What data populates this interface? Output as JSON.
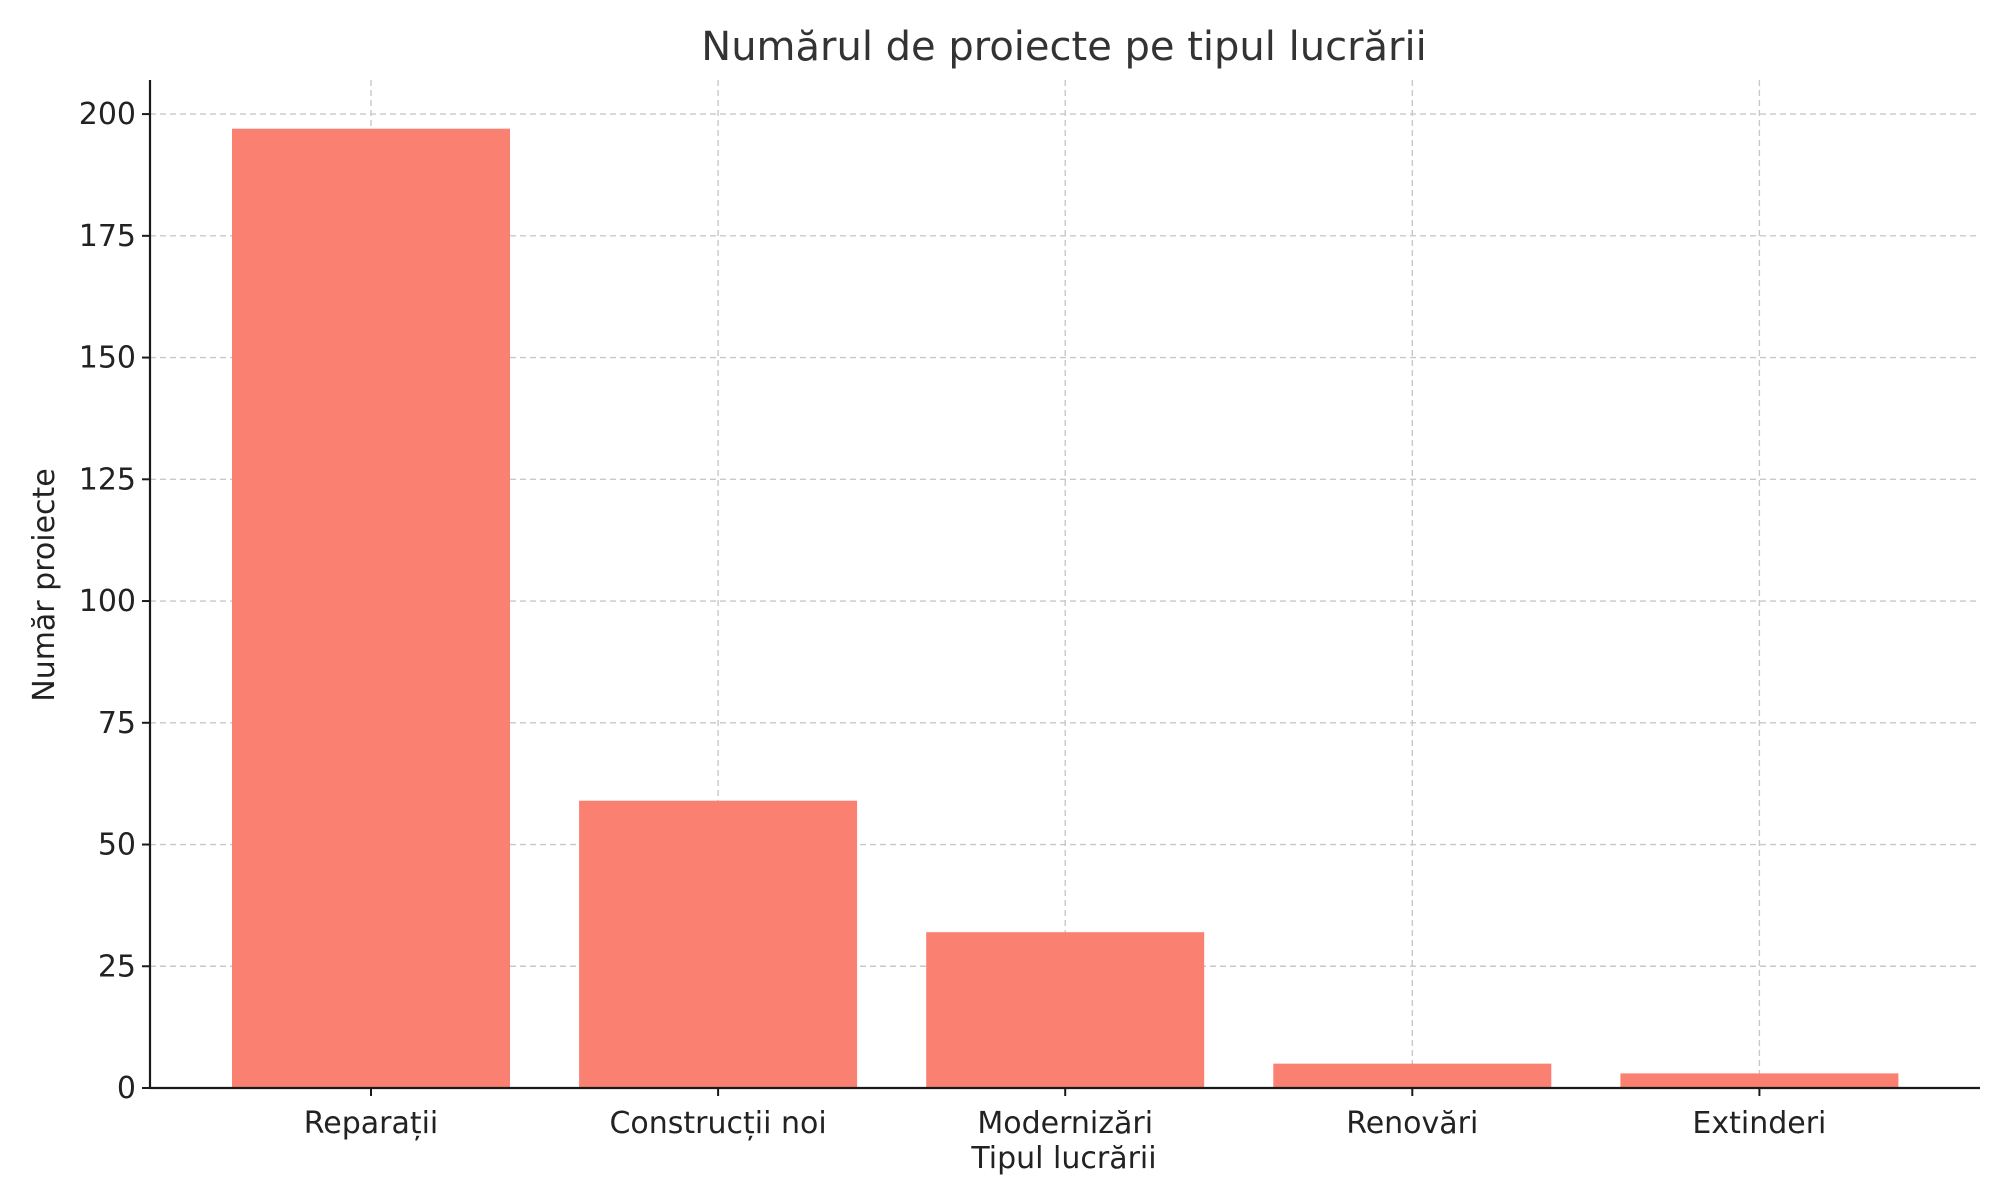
{
  "chart_data": {
    "type": "bar",
    "title": "Numărul de proiecte pe tipul lucrării",
    "xlabel": "Tipul lucrării",
    "ylabel": "Număr proiecte",
    "categories": [
      "Reparații",
      "Construcții noi",
      "Modernizări",
      "Renovări",
      "Extinderi"
    ],
    "values": [
      197,
      59,
      32,
      5,
      3
    ],
    "ylim": [
      0,
      207
    ],
    "yticks": [
      0,
      25,
      50,
      75,
      100,
      125,
      150,
      175,
      200
    ],
    "grid": true,
    "bar_color": "#FA8072"
  }
}
